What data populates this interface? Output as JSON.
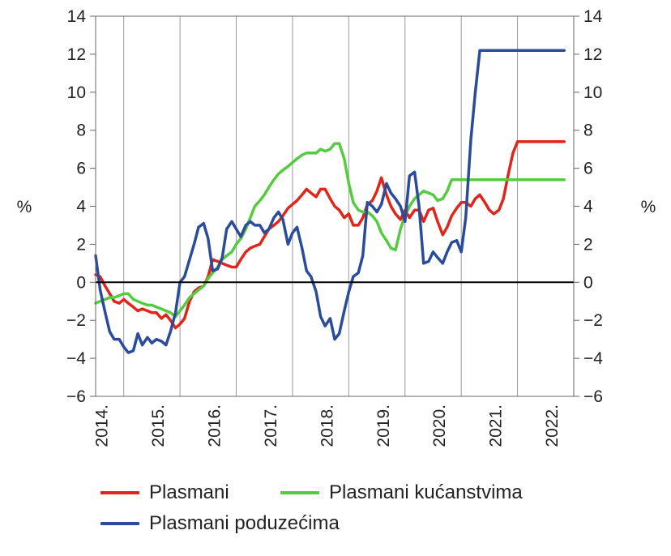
{
  "chart_data": {
    "type": "line",
    "title": "",
    "xlabel": "",
    "ylabel": "%",
    "ylabel_right": "%",
    "ylim": [
      -6,
      14
    ],
    "yticks": [
      -6,
      -4,
      -2,
      0,
      2,
      4,
      6,
      8,
      10,
      12,
      14
    ],
    "ytick_labels": [
      "−6",
      "−4",
      "−2",
      "0",
      "2",
      "4",
      "6",
      "8",
      "10",
      "12",
      "14"
    ],
    "xlim": [
      2013.5,
      2022.0
    ],
    "year_labels": [
      "2014.",
      "2015.",
      "2016.",
      "2017.",
      "2018.",
      "2019.",
      "2020.",
      "2021.",
      "2022."
    ],
    "grid": "vertical",
    "legend_position": "bottom",
    "colors": {
      "Plasmani": "#e0251b",
      "Plasmani kućanstvima": "#55cc3f",
      "Plasmani poduzećima": "#2b4c9a"
    },
    "series": [
      {
        "name": "Plasmani",
        "x": [
          2013.5,
          2013.58,
          2013.67,
          2013.75,
          2013.83,
          2013.92,
          2014.0,
          2014.08,
          2014.17,
          2014.25,
          2014.33,
          2014.42,
          2014.5,
          2014.58,
          2014.67,
          2014.75,
          2014.83,
          2014.92,
          2015.0,
          2015.08,
          2015.17,
          2015.25,
          2015.33,
          2015.42,
          2015.5,
          2015.58,
          2015.67,
          2015.75,
          2015.83,
          2015.92,
          2016.0,
          2016.08,
          2016.17,
          2016.25,
          2016.33,
          2016.42,
          2016.5,
          2016.58,
          2016.67,
          2016.75,
          2016.83,
          2016.92,
          2017.0,
          2017.08,
          2017.17,
          2017.25,
          2017.33,
          2017.42,
          2017.5,
          2017.58,
          2017.67,
          2017.75,
          2017.83,
          2017.92,
          2018.0,
          2018.08,
          2018.17,
          2018.25,
          2018.33,
          2018.42,
          2018.5,
          2018.58,
          2018.67,
          2018.75,
          2018.83,
          2018.92,
          2019.0,
          2019.08,
          2019.17,
          2019.25,
          2019.33,
          2019.42,
          2019.5,
          2019.58,
          2019.67,
          2019.75,
          2019.83,
          2019.92,
          2020.0,
          2020.08,
          2020.17,
          2020.25,
          2020.33,
          2020.42,
          2020.5,
          2020.58,
          2020.67,
          2020.75,
          2020.83,
          2020.92,
          2021.0,
          2021.08,
          2021.17,
          2021.25,
          2021.33,
          2021.42,
          2021.5,
          2021.58,
          2021.67,
          2021.75,
          2021.83,
          2021.92,
          2022.0,
          2022.08,
          2022.17,
          2022.25
        ],
        "values": [
          0.4,
          0.3,
          -0.2,
          -0.6,
          -1.0,
          -1.1,
          -0.9,
          -1.1,
          -1.3,
          -1.5,
          -1.4,
          -1.5,
          -1.6,
          -1.6,
          -1.9,
          -1.7,
          -2.0,
          -2.4,
          -2.2,
          -1.9,
          -1.0,
          -0.5,
          -0.3,
          -0.2,
          0.3,
          1.2,
          1.1,
          1.0,
          0.9,
          0.8,
          0.8,
          1.2,
          1.6,
          1.8,
          1.9,
          2.0,
          2.4,
          2.8,
          3.0,
          3.2,
          3.5,
          3.9,
          4.1,
          4.3,
          4.6,
          4.9,
          4.7,
          4.5,
          4.9,
          4.9,
          4.4,
          4.0,
          3.8,
          3.4,
          3.6,
          3.0,
          3.0,
          3.4,
          4.1,
          4.3,
          4.8,
          5.5,
          4.6,
          4.0,
          3.6,
          3.3,
          3.8,
          3.4,
          3.8,
          3.8,
          3.2,
          3.8,
          3.9,
          3.2,
          2.5,
          2.9,
          3.5,
          3.9,
          4.2,
          4.2,
          4.0,
          4.4,
          4.6,
          4.2,
          3.8,
          3.6,
          3.8,
          4.4,
          5.6,
          6.8,
          7.4,
          7.4,
          7.4,
          7.4,
          7.4,
          7.4,
          7.4,
          7.4,
          7.4,
          7.4,
          7.4,
          7.4,
          7.4,
          7.4,
          7.4,
          7.4
        ]
      },
      {
        "name": "Plasmani kućanstvima",
        "x": [
          2013.5,
          2013.58,
          2013.67,
          2013.75,
          2013.83,
          2013.92,
          2014.0,
          2014.08,
          2014.17,
          2014.25,
          2014.33,
          2014.42,
          2014.5,
          2014.58,
          2014.67,
          2014.75,
          2014.83,
          2014.92,
          2015.0,
          2015.08,
          2015.17,
          2015.25,
          2015.33,
          2015.42,
          2015.5,
          2015.58,
          2015.67,
          2015.75,
          2015.83,
          2015.92,
          2016.0,
          2016.08,
          2016.17,
          2016.25,
          2016.33,
          2016.42,
          2016.5,
          2016.58,
          2016.67,
          2016.75,
          2016.83,
          2016.92,
          2017.0,
          2017.08,
          2017.17,
          2017.25,
          2017.33,
          2017.42,
          2017.5,
          2017.58,
          2017.67,
          2017.75,
          2017.83,
          2017.92,
          2018.0,
          2018.08,
          2018.17,
          2018.25,
          2018.33,
          2018.42,
          2018.5,
          2018.58,
          2018.67,
          2018.75,
          2018.83,
          2018.92,
          2019.0,
          2019.08,
          2019.17,
          2019.25,
          2019.33,
          2019.42,
          2019.5,
          2019.58,
          2019.67,
          2019.75,
          2019.83,
          2019.92,
          2020.0,
          2020.08,
          2020.17,
          2020.25,
          2020.33,
          2020.42,
          2020.5,
          2020.58,
          2020.67,
          2020.75,
          2020.83,
          2020.92,
          2021.0,
          2021.08,
          2021.17,
          2021.25,
          2021.33,
          2021.42,
          2021.5,
          2021.58,
          2021.67,
          2021.75,
          2021.83,
          2021.92,
          2022.0,
          2022.08,
          2022.17,
          2022.25
        ],
        "values": [
          -1.1,
          -1.0,
          -0.9,
          -0.8,
          -0.8,
          -0.7,
          -0.6,
          -0.6,
          -0.9,
          -1.0,
          -1.1,
          -1.2,
          -1.2,
          -1.3,
          -1.4,
          -1.5,
          -1.6,
          -1.8,
          -1.5,
          -1.2,
          -0.8,
          -0.6,
          -0.4,
          -0.2,
          0.2,
          0.5,
          0.8,
          1.2,
          1.4,
          1.6,
          2.0,
          2.3,
          2.8,
          3.4,
          4.0,
          4.3,
          4.6,
          5.0,
          5.4,
          5.7,
          5.9,
          6.1,
          6.3,
          6.5,
          6.7,
          6.8,
          6.8,
          6.8,
          7.0,
          6.9,
          7.0,
          7.3,
          7.3,
          6.5,
          5.2,
          4.2,
          3.8,
          3.7,
          3.7,
          3.5,
          3.2,
          2.6,
          2.2,
          1.8,
          1.7,
          2.8,
          3.5,
          4.0,
          4.4,
          4.6,
          4.8,
          4.7,
          4.6,
          4.3,
          4.4,
          4.8,
          5.4,
          5.4,
          5.4,
          5.4,
          5.4,
          5.4,
          5.4,
          5.4,
          5.4,
          5.4,
          5.4,
          5.4,
          5.4,
          5.4,
          5.4,
          5.4,
          5.4,
          5.4,
          5.4,
          5.4,
          5.4,
          5.4,
          5.4,
          5.4,
          5.4,
          5.4,
          5.4,
          5.4,
          5.4,
          5.4
        ]
      },
      {
        "name": "Plasmani poduzećima",
        "x": [
          2013.5,
          2013.58,
          2013.67,
          2013.75,
          2013.83,
          2013.92,
          2014.0,
          2014.08,
          2014.17,
          2014.25,
          2014.33,
          2014.42,
          2014.5,
          2014.58,
          2014.67,
          2014.75,
          2014.83,
          2014.92,
          2015.0,
          2015.08,
          2015.17,
          2015.25,
          2015.33,
          2015.42,
          2015.5,
          2015.58,
          2015.67,
          2015.75,
          2015.83,
          2015.92,
          2016.0,
          2016.08,
          2016.17,
          2016.25,
          2016.33,
          2016.42,
          2016.5,
          2016.58,
          2016.67,
          2016.75,
          2016.83,
          2016.92,
          2017.0,
          2017.08,
          2017.17,
          2017.25,
          2017.33,
          2017.42,
          2017.5,
          2017.58,
          2017.67,
          2017.75,
          2017.83,
          2017.92,
          2018.0,
          2018.08,
          2018.17,
          2018.25,
          2018.33,
          2018.42,
          2018.5,
          2018.58,
          2018.67,
          2018.75,
          2018.83,
          2018.92,
          2019.0,
          2019.08,
          2019.17,
          2019.25,
          2019.33,
          2019.42,
          2019.5,
          2019.58,
          2019.67,
          2019.75,
          2019.83,
          2019.92,
          2020.0,
          2020.08,
          2020.17,
          2020.25,
          2020.33,
          2020.42,
          2020.5,
          2020.58,
          2020.67,
          2020.75,
          2020.83,
          2020.92,
          2021.0,
          2021.08,
          2021.17,
          2021.25,
          2021.33,
          2021.42,
          2021.5,
          2021.58,
          2021.67,
          2021.75,
          2021.83,
          2021.92,
          2022.0,
          2022.08,
          2022.17,
          2022.25
        ],
        "values": [
          1.4,
          -0.4,
          -1.6,
          -2.6,
          -3.0,
          -3.0,
          -3.4,
          -3.7,
          -3.6,
          -2.7,
          -3.3,
          -2.9,
          -3.2,
          -3.0,
          -3.1,
          -3.3,
          -2.6,
          -1.6,
          0.0,
          0.3,
          1.2,
          2.0,
          2.9,
          3.1,
          2.3,
          0.6,
          0.7,
          1.3,
          2.8,
          3.2,
          2.8,
          2.4,
          3.0,
          3.2,
          3.0,
          3.0,
          2.6,
          2.8,
          3.4,
          3.7,
          3.3,
          2.0,
          2.6,
          2.9,
          1.8,
          0.6,
          0.3,
          -0.5,
          -1.8,
          -2.3,
          -1.9,
          -3.0,
          -2.7,
          -1.5,
          -0.5,
          0.3,
          0.5,
          1.4,
          4.2,
          4.0,
          3.7,
          4.1,
          5.2,
          4.7,
          4.4,
          4.0,
          3.2,
          5.6,
          5.8,
          4.0,
          1.0,
          1.1,
          1.6,
          1.3,
          1.0,
          1.6,
          2.1,
          2.2,
          1.6,
          3.4,
          7.5,
          10.0,
          12.2,
          12.2,
          12.2,
          12.2,
          12.2,
          12.2,
          12.2,
          12.2,
          12.2,
          12.2,
          12.2,
          12.2,
          12.2,
          12.2,
          12.2,
          12.2,
          12.2,
          12.2,
          12.2,
          12.2,
          12.2,
          12.2,
          12.2,
          12.2
        ]
      }
    ]
  }
}
